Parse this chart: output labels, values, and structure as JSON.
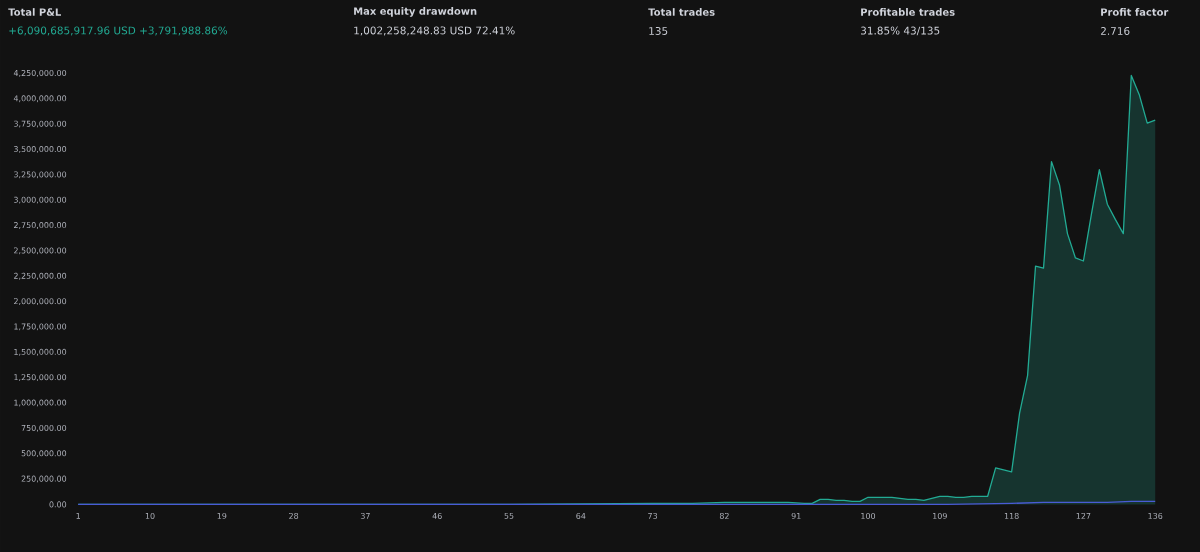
{
  "chart_data": {
    "type": "area",
    "annotations": [
      "Total P&L",
      "+6,090,685,917.96 USD +3,791,988.86%",
      "Max equity drawdown",
      "1,002,258,248.83 USD 72.41%",
      "Total trades",
      "135",
      "Profitable trades",
      "31.85% 43/135",
      "Profit factor",
      "2.716"
    ],
    "series": [
      {
        "color": "#22ab94",
        "x": [
          1,
          28,
          55,
          73,
          78,
          82,
          86,
          90,
          92,
          93,
          94,
          95,
          96,
          97,
          98,
          99,
          100,
          101,
          102,
          103,
          104,
          105,
          106,
          107,
          108,
          109,
          110,
          111,
          112,
          113,
          114,
          115,
          116,
          117,
          118,
          119,
          120,
          121,
          122,
          123,
          124,
          125,
          126,
          127,
          128,
          129,
          130,
          131,
          132,
          133,
          134,
          135,
          136
        ],
        "values": [
          0,
          0,
          0,
          10000,
          10000,
          20000,
          20000,
          20000,
          10000,
          10000,
          50000,
          50000,
          40000,
          40000,
          30000,
          30000,
          70000,
          70000,
          70000,
          70000,
          60000,
          50000,
          50000,
          40000,
          60000,
          80000,
          80000,
          70000,
          70000,
          80000,
          80000,
          80000,
          360000,
          340000,
          320000,
          900000,
          1270000,
          2350000,
          2330000,
          3380000,
          3150000,
          2670000,
          2430000,
          2400000,
          2860000,
          3300000,
          2960000,
          2810000,
          2670000,
          4230000,
          4040000,
          3760000,
          3790000
        ]
      },
      {
        "type": "line",
        "color": "#4a5bd6",
        "x": [
          1,
          110,
          118,
          122,
          130,
          133,
          136
        ],
        "values": [
          0,
          0,
          10000,
          20000,
          20000,
          30000,
          30000
        ]
      }
    ],
    "xlim": [
      1,
      136
    ],
    "ylim": [
      0,
      4250000
    ],
    "xticks": [
      1,
      10,
      19,
      28,
      37,
      46,
      55,
      64,
      73,
      82,
      91,
      100,
      109,
      118,
      127,
      136
    ],
    "yticks": [
      {
        "value": 0,
        "label": "0.00"
      },
      {
        "value": 250000,
        "label": "250,000.00"
      },
      {
        "value": 500000,
        "label": "500,000.00"
      },
      {
        "value": 750000,
        "label": "750,000.00"
      },
      {
        "value": 1000000,
        "label": "1,000,000.00"
      },
      {
        "value": 1250000,
        "label": "1,250,000.00"
      },
      {
        "value": 1500000,
        "label": "1,500,000.00"
      },
      {
        "value": 1750000,
        "label": "1,750,000.00"
      },
      {
        "value": 2000000,
        "label": "2,000,000.00"
      },
      {
        "value": 2250000,
        "label": "2,250,000.00"
      },
      {
        "value": 2500000,
        "label": "2,500,000.00"
      },
      {
        "value": 2750000,
        "label": "2,750,000.00"
      },
      {
        "value": 3000000,
        "label": "3,000,000.00"
      },
      {
        "value": 3250000,
        "label": "3,250,000.00"
      },
      {
        "value": 3500000,
        "label": "3,500,000.00"
      },
      {
        "value": 3750000,
        "label": "3,750,000.00"
      },
      {
        "value": 4000000,
        "label": "4,000,000.00"
      },
      {
        "value": 4250000,
        "label": "4,250,000.00"
      }
    ]
  }
}
